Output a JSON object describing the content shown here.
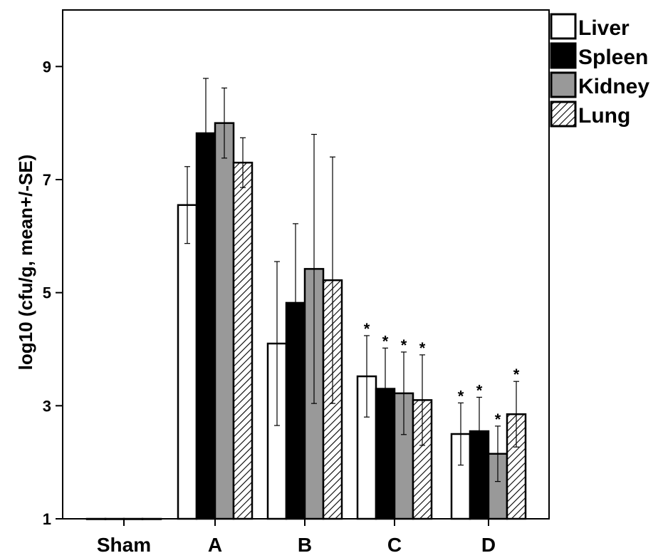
{
  "chart_data": {
    "type": "bar",
    "ylabel": "log10 (cfu/g, mean+/-SE)",
    "xlabel": "",
    "ylim": [
      1,
      10
    ],
    "yticks": [
      1,
      3,
      5,
      7,
      9
    ],
    "categories": [
      "Sham",
      "A",
      "B",
      "C",
      "D"
    ],
    "series": [
      {
        "name": "Liver",
        "fill": "#ffffff",
        "pattern": "none",
        "values": [
          1.0,
          6.55,
          4.1,
          3.52,
          2.5
        ],
        "errors": [
          0,
          0.68,
          1.45,
          0.72,
          0.55
        ],
        "significant": [
          false,
          false,
          false,
          true,
          true
        ]
      },
      {
        "name": "Spleen",
        "fill": "#000000",
        "pattern": "none",
        "values": [
          1.0,
          7.82,
          4.82,
          3.3,
          2.55
        ],
        "errors": [
          0,
          0.97,
          1.4,
          0.72,
          0.6
        ],
        "significant": [
          false,
          false,
          false,
          true,
          true
        ]
      },
      {
        "name": "Kidney",
        "fill": "#999999",
        "pattern": "none",
        "values": [
          1.0,
          8.0,
          5.42,
          3.22,
          2.15
        ],
        "errors": [
          0,
          0.62,
          2.38,
          0.73,
          0.49
        ],
        "significant": [
          false,
          false,
          false,
          true,
          true
        ]
      },
      {
        "name": "Lung",
        "fill": "#ffffff",
        "pattern": "hatch",
        "values": [
          1.0,
          7.3,
          5.22,
          3.1,
          2.85
        ],
        "errors": [
          0,
          0.44,
          2.18,
          0.8,
          0.58
        ],
        "significant": [
          false,
          false,
          false,
          true,
          true
        ]
      }
    ],
    "significance_marker": "*",
    "legend_position": "top-right",
    "grid": false,
    "colors": {
      "outline": "#000000",
      "kidney": "#999999",
      "spleen": "#000000"
    }
  }
}
